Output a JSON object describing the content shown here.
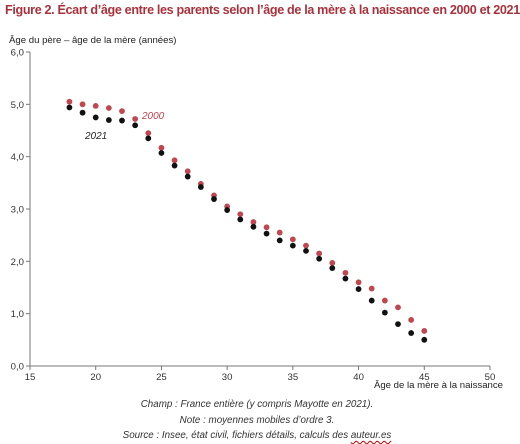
{
  "title": "Figure 2. Écart d’âge entre les parents selon l’âge de la mère à la naissance en 2000 et 2021",
  "colors": {
    "title": "#a8323c",
    "series_2000": "#c0464f",
    "series_2021": "#111111",
    "axis": "#777777"
  },
  "chart_data": {
    "type": "scatter",
    "ylabel": "Âge du père – âge de la mère (années)",
    "xlabel": "Âge de la mère à la naissance",
    "xlim": [
      15,
      50
    ],
    "ylim": [
      0,
      6
    ],
    "x_ticks": [
      "15",
      "20",
      "25",
      "30",
      "35",
      "40",
      "45",
      "50"
    ],
    "y_ticks": [
      "0,0",
      "1,0",
      "2,0",
      "3,0",
      "4,0",
      "5,0",
      "6,0"
    ],
    "grid": false,
    "legend": "inline labels",
    "x": [
      18,
      19,
      20,
      21,
      22,
      23,
      24,
      25,
      26,
      27,
      28,
      29,
      30,
      31,
      32,
      33,
      34,
      35,
      36,
      37,
      38,
      39,
      40,
      41,
      42,
      43,
      44,
      45
    ],
    "series": [
      {
        "name": "2000",
        "values": [
          5.05,
          5.0,
          4.97,
          4.93,
          4.87,
          4.72,
          4.45,
          4.17,
          3.93,
          3.72,
          3.48,
          3.26,
          3.05,
          2.9,
          2.75,
          2.65,
          2.55,
          2.42,
          2.3,
          2.15,
          1.97,
          1.78,
          1.6,
          1.48,
          1.25,
          1.12,
          0.88,
          0.67
        ]
      },
      {
        "name": "2021",
        "values": [
          4.94,
          4.84,
          4.75,
          4.7,
          4.69,
          4.6,
          4.35,
          4.07,
          3.83,
          3.62,
          3.42,
          3.19,
          2.98,
          2.8,
          2.66,
          2.53,
          2.4,
          2.3,
          2.2,
          2.05,
          1.87,
          1.67,
          1.47,
          1.25,
          1.02,
          0.8,
          0.63,
          0.5
        ]
      }
    ]
  },
  "notes": {
    "line1": "Champ : France entière (y compris Mayotte en 2021).",
    "line2": "Note : moyennes mobiles d’ordre 3.",
    "line3_prefix": "Source : Insee, état civil, fichiers détails, calculs des ",
    "line3_squiggle": "auteur.es"
  }
}
